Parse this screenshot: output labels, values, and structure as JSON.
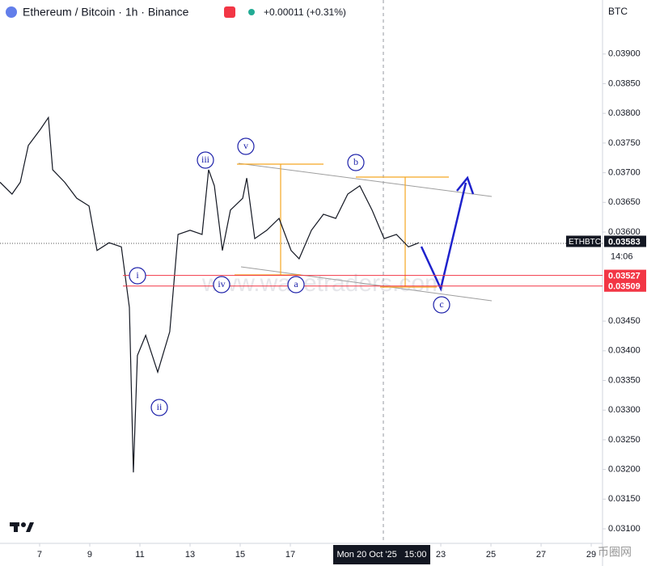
{
  "chart_data": {
    "type": "line",
    "title": "Ethereum / Bitcoin · 1h · Binance",
    "change": "+0.00011 (+0.31%)",
    "currency": "BTC",
    "watermark": "www.wavetraders.com",
    "brand": "币圈网",
    "crosshair_label": "Mon 20 Oct '25   15:00",
    "x": [
      5.42,
      5.9,
      6.23,
      6.55,
      7.03,
      7.35,
      7.52,
      8.0,
      8.48,
      8.97,
      9.29,
      9.77,
      10.26,
      10.58,
      10.74,
      10.9,
      11.23,
      11.71,
      12.19,
      12.52,
      13.0,
      13.48,
      13.74,
      13.97,
      14.29,
      14.61,
      15.1,
      15.26,
      15.58,
      16.06,
      16.55,
      17.03,
      17.35,
      17.84,
      18.32,
      18.81,
      19.29,
      19.77,
      20.26,
      20.74,
      21.23,
      21.71,
      22.13
    ],
    "series": [
      {
        "name": "ETHBTC",
        "color": "#131722",
        "values": [
          0.03684,
          0.03664,
          0.03684,
          0.03746,
          0.03773,
          0.03793,
          0.03705,
          0.03684,
          0.03657,
          0.03644,
          0.03569,
          0.03582,
          0.03575,
          0.03473,
          0.03195,
          0.03392,
          0.03426,
          0.03364,
          0.03432,
          0.03596,
          0.03603,
          0.03596,
          0.03705,
          0.03678,
          0.03569,
          0.03637,
          0.03657,
          0.03691,
          0.03589,
          0.03603,
          0.03623,
          0.03569,
          0.03555,
          0.03603,
          0.0363,
          0.03623,
          0.03664,
          0.03678,
          0.03637,
          0.03589,
          0.03596,
          0.03575,
          0.03582
        ]
      }
    ],
    "last_price": 0.03583,
    "countdown": "14:06",
    "levels": [
      0.03527,
      0.03509
    ],
    "xlim": [
      5.42,
      29.45
    ],
    "xticks": [
      7,
      9,
      11,
      13,
      15,
      17,
      23,
      25,
      27,
      29
    ],
    "ylim": [
      0.030755,
      0.03991
    ],
    "yticks": [
      {
        "value": 0.031,
        "label": "0.03100"
      },
      {
        "value": 0.0315,
        "label": "0.03150"
      },
      {
        "value": 0.032,
        "label": "0.03200"
      },
      {
        "value": 0.0325,
        "label": "0.03250"
      },
      {
        "value": 0.033,
        "label": "0.03300"
      },
      {
        "value": 0.0335,
        "label": "0.03350"
      },
      {
        "value": 0.034,
        "label": "0.03400"
      },
      {
        "value": 0.0345,
        "label": "0.03450"
      },
      {
        "value": 0.036,
        "label": "0.03600"
      },
      {
        "value": 0.0365,
        "label": "0.03650"
      },
      {
        "value": 0.037,
        "label": "0.03700"
      },
      {
        "value": 0.0375,
        "label": "0.03750"
      },
      {
        "value": 0.038,
        "label": "0.03800"
      },
      {
        "value": 0.0385,
        "label": "0.03850"
      },
      {
        "value": 0.039,
        "label": "0.03900"
      }
    ],
    "annotations": [
      "i",
      "ii",
      "iii",
      "iv",
      "v",
      "a",
      "b",
      "c"
    ]
  }
}
